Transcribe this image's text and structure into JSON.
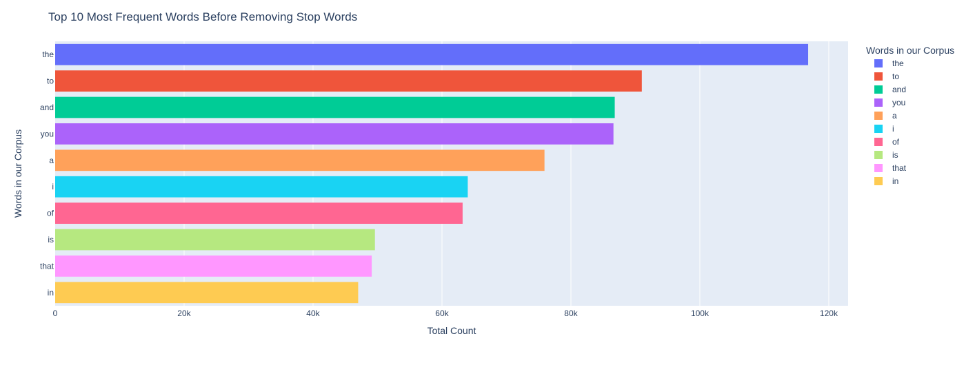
{
  "chart_data": {
    "type": "bar",
    "orientation": "horizontal",
    "title": "Top 10 Most Frequent Words Before Removing Stop Words",
    "xlabel": "Total Count",
    "ylabel": "Words in our Corpus",
    "xlim": [
      0,
      123000
    ],
    "x_ticks": [
      {
        "value": 0,
        "label": "0"
      },
      {
        "value": 20000,
        "label": "20k"
      },
      {
        "value": 40000,
        "label": "40k"
      },
      {
        "value": 60000,
        "label": "60k"
      },
      {
        "value": 80000,
        "label": "80k"
      },
      {
        "value": 100000,
        "label": "100k"
      },
      {
        "value": 120000,
        "label": "120k"
      }
    ],
    "grid": true,
    "legend": {
      "title": "Words in our Corpus",
      "placement": "right"
    },
    "bars": [
      {
        "word": "the",
        "value": 116800,
        "color": "#636efa"
      },
      {
        "word": "to",
        "value": 91000,
        "color": "#EF553B"
      },
      {
        "word": "and",
        "value": 86800,
        "color": "#00cc96"
      },
      {
        "word": "you",
        "value": 86600,
        "color": "#ab63fa"
      },
      {
        "word": "a",
        "value": 75900,
        "color": "#FFA15A"
      },
      {
        "word": "i",
        "value": 64000,
        "color": "#19d3f3"
      },
      {
        "word": "of",
        "value": 63200,
        "color": "#FF6692"
      },
      {
        "word": "is",
        "value": 49600,
        "color": "#B6E880"
      },
      {
        "word": "that",
        "value": 49100,
        "color": "#FF97FF"
      },
      {
        "word": "in",
        "value": 47000,
        "color": "#FECB52"
      }
    ],
    "colors": {
      "plot_bg": "#e5ecf6",
      "grid": "#ffffff",
      "text": "#2a3f5f"
    }
  }
}
